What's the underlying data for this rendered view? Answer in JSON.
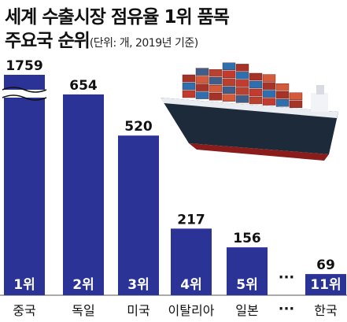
{
  "title": "세계 수출시장 점유율 1위 품목",
  "subtitle": "주요국 순위",
  "unit": "(단위: 개, 2019년 기준)",
  "chart_data": {
    "type": "bar",
    "categories": [
      "중국",
      "독일",
      "미국",
      "이탈리아",
      "일본",
      "한국"
    ],
    "values": [
      1759,
      654,
      520,
      217,
      156,
      69
    ],
    "rank_labels": [
      "1위",
      "2위",
      "3위",
      "4위",
      "5위",
      "11위"
    ],
    "gap_after_index": 4,
    "gap_label": "···",
    "axis_break": true,
    "bar_color": "#2b3397"
  }
}
